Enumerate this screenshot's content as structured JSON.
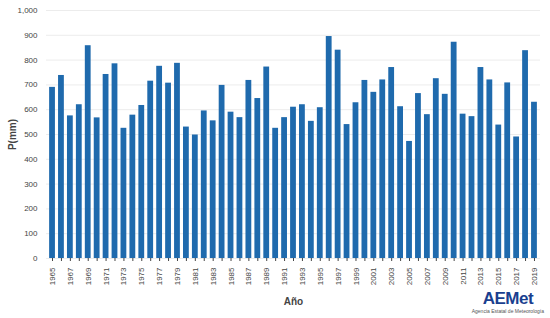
{
  "chart_data": {
    "type": "bar",
    "x_label": "Año",
    "y_label": "P(mm)",
    "categories": [
      "1965",
      null,
      "1967",
      null,
      "1969",
      null,
      "1971",
      null,
      "1973",
      null,
      "1975",
      null,
      "1977",
      null,
      "1979",
      null,
      "1981",
      null,
      "1983",
      null,
      "1985",
      null,
      "1987",
      null,
      "1989",
      null,
      "1991",
      null,
      "1993",
      null,
      "1995",
      null,
      "1997",
      null,
      "1999",
      null,
      "2001",
      null,
      "2003",
      null,
      "2005",
      null,
      "2007",
      null,
      "2009",
      null,
      "2011",
      null,
      "2013",
      null,
      "2015",
      null,
      "2017",
      null,
      "2019"
    ],
    "values": [
      690,
      738,
      575,
      620,
      858,
      567,
      742,
      785,
      525,
      578,
      617,
      715,
      775,
      707,
      787,
      530,
      498,
      595,
      555,
      698,
      590,
      568,
      718,
      645,
      772,
      525,
      568,
      610,
      620,
      553,
      608,
      895,
      840,
      540,
      628,
      718,
      670,
      720,
      770,
      612,
      472,
      665,
      580,
      725,
      662,
      872,
      582,
      572,
      770,
      720,
      538,
      708,
      490,
      838,
      630
    ],
    "color": "#1f6aad",
    "ylim": [
      0,
      1000
    ],
    "yticks": [
      0,
      100,
      200,
      300,
      400,
      500,
      600,
      700,
      800,
      900,
      1000
    ],
    "grid": true,
    "annotations": [
      "AEMet",
      "Agencia Estatal de Meteorología"
    ]
  }
}
